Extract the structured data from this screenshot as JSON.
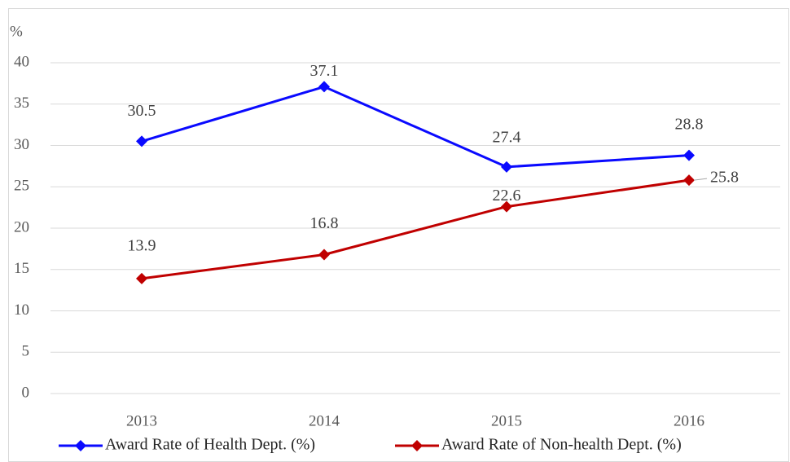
{
  "chart_data": {
    "type": "line",
    "y_axis_label": "%",
    "categories": [
      "2013",
      "2014",
      "2015",
      "2016"
    ],
    "series": [
      {
        "name": "Award Rate of Health Dept. (%)",
        "color": "#0a0aff",
        "values": [
          30.5,
          37.1,
          27.4,
          28.8
        ]
      },
      {
        "name": "Award Rate of Non-health Dept. (%)",
        "color": "#c00000",
        "values": [
          13.9,
          16.8,
          22.6,
          25.8
        ]
      }
    ],
    "ylim": [
      0,
      40
    ],
    "yticks": [
      0,
      5,
      10,
      15,
      20,
      25,
      30,
      35,
      40
    ],
    "grid": true,
    "legend": "bottom"
  }
}
